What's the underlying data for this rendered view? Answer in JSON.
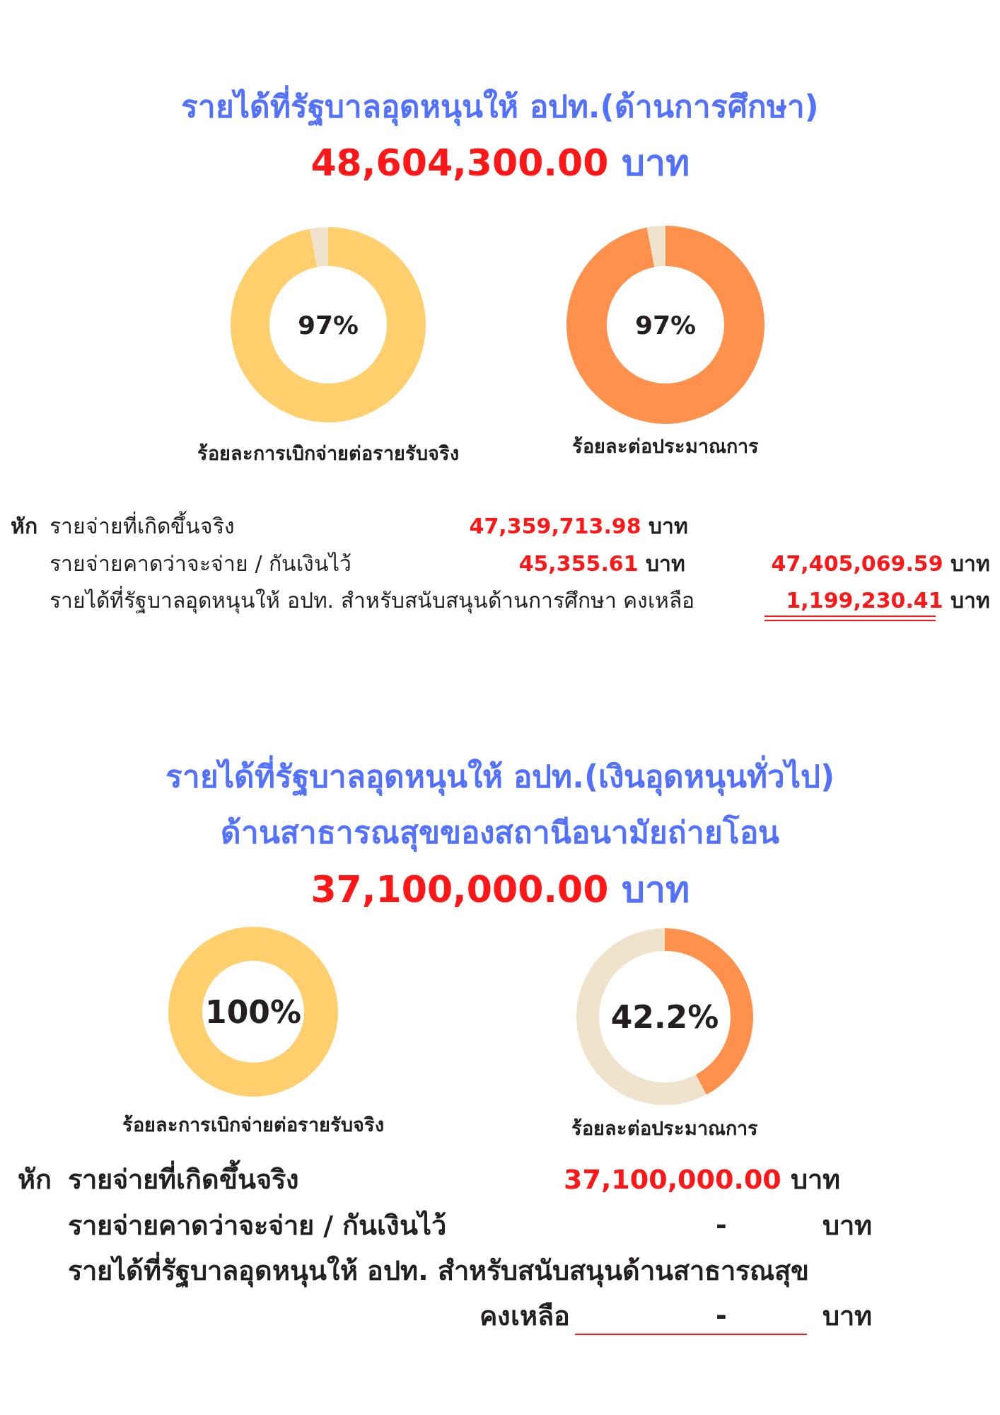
{
  "chart_data": [
    {
      "type": "other",
      "title": "รายได้ที่รัฐบาลอุดหนุนให้ อปท.(ด้านการศึกษา)",
      "annotations": [
        "48,604,300.00 บาท"
      ]
    },
    {
      "type": "donut",
      "categories": [
        null,
        null
      ],
      "values": [
        97,
        3
      ],
      "colors": [
        "#ffcf6e",
        "#efe3cc"
      ],
      "xlabel": "ร้อยละการเบิกจ่ายต่อรายรับจริง",
      "annotations": [
        "97%"
      ]
    },
    {
      "type": "donut",
      "categories": [
        null,
        null
      ],
      "values": [
        97,
        3
      ],
      "colors": [
        "#ff914d",
        "#efe3cc"
      ],
      "xlabel": "ร้อยละต่อประมาณการ",
      "annotations": [
        "97%"
      ]
    },
    {
      "type": "other",
      "annotations": [
        "หัก",
        "รายจ่ายที่เกิดขึ้นจริง",
        "47,359,713.98 บาท",
        "รายจ่ายคาดว่าจะจ่าย / กันเงินไว้",
        "45,355.61 บาท",
        "47,405,069.59 บาท",
        "รายได้ที่รัฐบาลอุดหนุนให้ อปท. สำหรับสนับสนุนด้านการศึกษา คงเหลือ",
        "1,199,230.41 บาท"
      ]
    },
    {
      "type": "other",
      "title": "รายได้ที่รัฐบาลอุดหนุนให้ อปท.(เงินอุดหนุนทั่วไป)",
      "subtitle": "ด้านสาธารณสุขของสถานีอนามัยถ่ายโอน",
      "annotations": [
        "37,100,000.00 บาท"
      ]
    },
    {
      "type": "donut",
      "categories": [
        null
      ],
      "values": [
        100
      ],
      "colors": [
        "#ffcf6e"
      ],
      "xlabel": "ร้อยละการเบิกจ่ายต่อรายรับจริง",
      "annotations": [
        "100%"
      ]
    },
    {
      "type": "donut",
      "categories": [
        null,
        null
      ],
      "values": [
        42.2,
        57.8
      ],
      "colors": [
        "#ff914d",
        "#efe3cc"
      ],
      "xlabel": "ร้อยละต่อประมาณการ",
      "annotations": [
        "42.2%"
      ]
    },
    {
      "type": "other",
      "annotations": [
        "หัก",
        "รายจ่ายที่เกิดขึ้นจริง",
        "37,100,000.00 บาท",
        "รายจ่ายคาดว่าจะจ่าย / กันเงินไว้",
        "- บาท",
        "รายได้ที่รัฐบาลอุดหนุนให้ อปท. สำหรับสนับสนุนด้านสาธารณสุข",
        "คงเหลือ",
        "- บาท"
      ]
    }
  ]
}
